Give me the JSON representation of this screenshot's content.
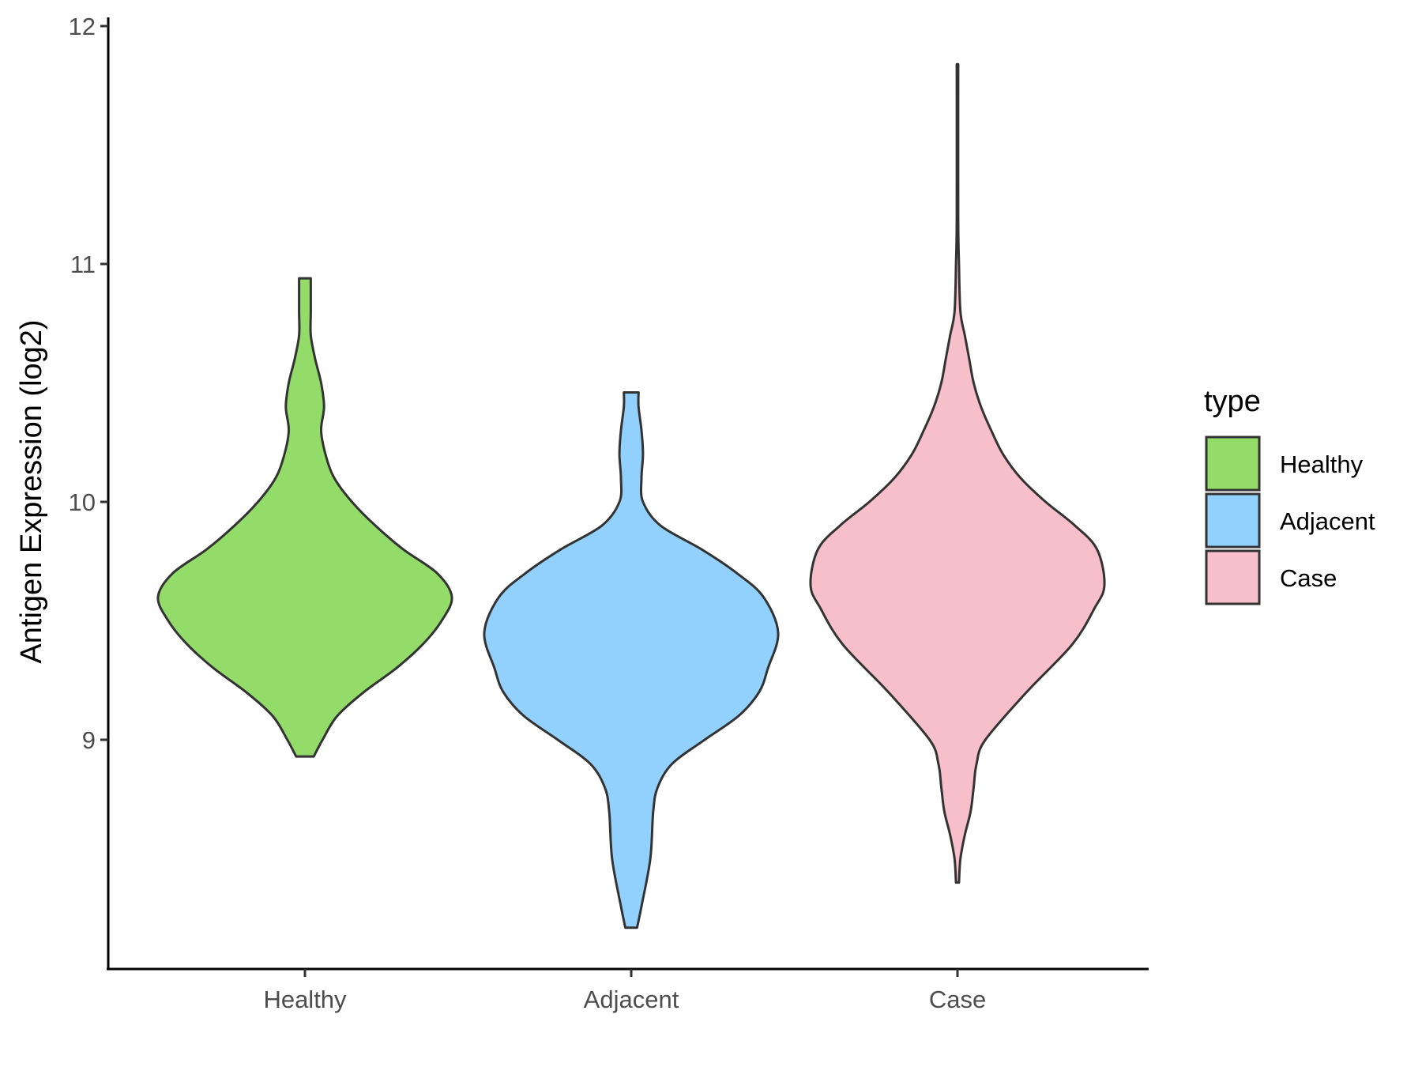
{
  "chart_data": {
    "type": "violin",
    "ylabel": "Antigen Expression (log2)",
    "xlabel": "",
    "ylim": [
      8.05,
      12.1
    ],
    "yticks": [
      9,
      10,
      11,
      12
    ],
    "grid": false,
    "legend": {
      "title": "type",
      "placement": "right",
      "entries": [
        "Healthy",
        "Adjacent",
        "Case"
      ]
    },
    "categories": [
      "Healthy",
      "Adjacent",
      "Case"
    ],
    "colors": {
      "Healthy": "#93DC6A",
      "Adjacent": "#92D1FD",
      "Case": "#F7BFCA"
    },
    "outline_color": "#333333",
    "series": [
      {
        "name": "Healthy",
        "min": 8.93,
        "max": 10.94,
        "profile": [
          [
            8.93,
            0.06
          ],
          [
            9.0,
            0.12
          ],
          [
            9.1,
            0.22
          ],
          [
            9.2,
            0.4
          ],
          [
            9.3,
            0.62
          ],
          [
            9.4,
            0.8
          ],
          [
            9.5,
            0.93
          ],
          [
            9.6,
            1.0
          ],
          [
            9.7,
            0.9
          ],
          [
            9.8,
            0.67
          ],
          [
            9.9,
            0.48
          ],
          [
            10.0,
            0.32
          ],
          [
            10.1,
            0.2
          ],
          [
            10.2,
            0.14
          ],
          [
            10.3,
            0.11
          ],
          [
            10.4,
            0.13
          ],
          [
            10.5,
            0.11
          ],
          [
            10.6,
            0.07
          ],
          [
            10.7,
            0.04
          ],
          [
            10.8,
            0.04
          ],
          [
            10.94,
            0.04
          ]
        ]
      },
      {
        "name": "Adjacent",
        "min": 8.21,
        "max": 10.46,
        "profile": [
          [
            8.21,
            0.04
          ],
          [
            8.3,
            0.07
          ],
          [
            8.5,
            0.13
          ],
          [
            8.7,
            0.15
          ],
          [
            8.8,
            0.18
          ],
          [
            8.9,
            0.28
          ],
          [
            9.0,
            0.5
          ],
          [
            9.1,
            0.73
          ],
          [
            9.2,
            0.87
          ],
          [
            9.3,
            0.93
          ],
          [
            9.45,
            1.0
          ],
          [
            9.6,
            0.9
          ],
          [
            9.7,
            0.72
          ],
          [
            9.8,
            0.48
          ],
          [
            9.9,
            0.2
          ],
          [
            10.0,
            0.08
          ],
          [
            10.1,
            0.07
          ],
          [
            10.2,
            0.08
          ],
          [
            10.3,
            0.07
          ],
          [
            10.4,
            0.05
          ],
          [
            10.46,
            0.05
          ]
        ]
      },
      {
        "name": "Case",
        "min": 8.4,
        "max": 11.84,
        "profile": [
          [
            8.4,
            0.01
          ],
          [
            8.5,
            0.02
          ],
          [
            8.6,
            0.05
          ],
          [
            8.7,
            0.09
          ],
          [
            8.8,
            0.11
          ],
          [
            8.9,
            0.13
          ],
          [
            9.0,
            0.19
          ],
          [
            9.2,
            0.47
          ],
          [
            9.4,
            0.78
          ],
          [
            9.55,
            0.93
          ],
          [
            9.65,
            1.0
          ],
          [
            9.8,
            0.95
          ],
          [
            9.9,
            0.8
          ],
          [
            10.0,
            0.6
          ],
          [
            10.1,
            0.43
          ],
          [
            10.2,
            0.31
          ],
          [
            10.3,
            0.23
          ],
          [
            10.4,
            0.16
          ],
          [
            10.5,
            0.11
          ],
          [
            10.6,
            0.08
          ],
          [
            10.7,
            0.05
          ],
          [
            10.8,
            0.02
          ],
          [
            11.0,
            0.01
          ],
          [
            11.2,
            0.005
          ],
          [
            11.84,
            0.005
          ]
        ]
      }
    ]
  }
}
